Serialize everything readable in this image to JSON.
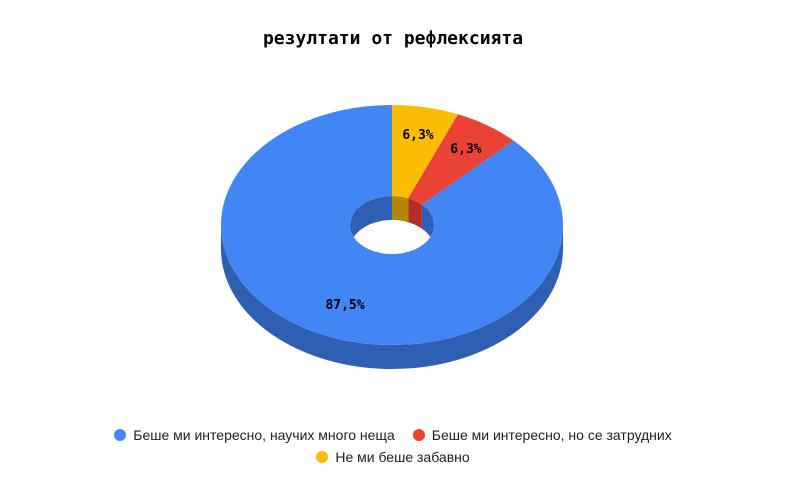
{
  "chart_data": {
    "type": "pie",
    "title": "резултати от рефлексията",
    "categories": [
      "Беше ми интересно, научих много неща",
      "Беше ми интересно, но се затрудних",
      "Не ми беше забавно"
    ],
    "values": [
      87.5,
      6.3,
      6.3
    ],
    "value_labels": [
      "87,5%",
      "6,3%",
      "6,3%"
    ],
    "colors": [
      "#4285f4",
      "#ea4335",
      "#fbbc04"
    ],
    "side_colors": [
      "#2f5fb3",
      "#b52e25",
      "#b3860c"
    ],
    "style": "3d-donut",
    "legend_position": "bottom"
  }
}
